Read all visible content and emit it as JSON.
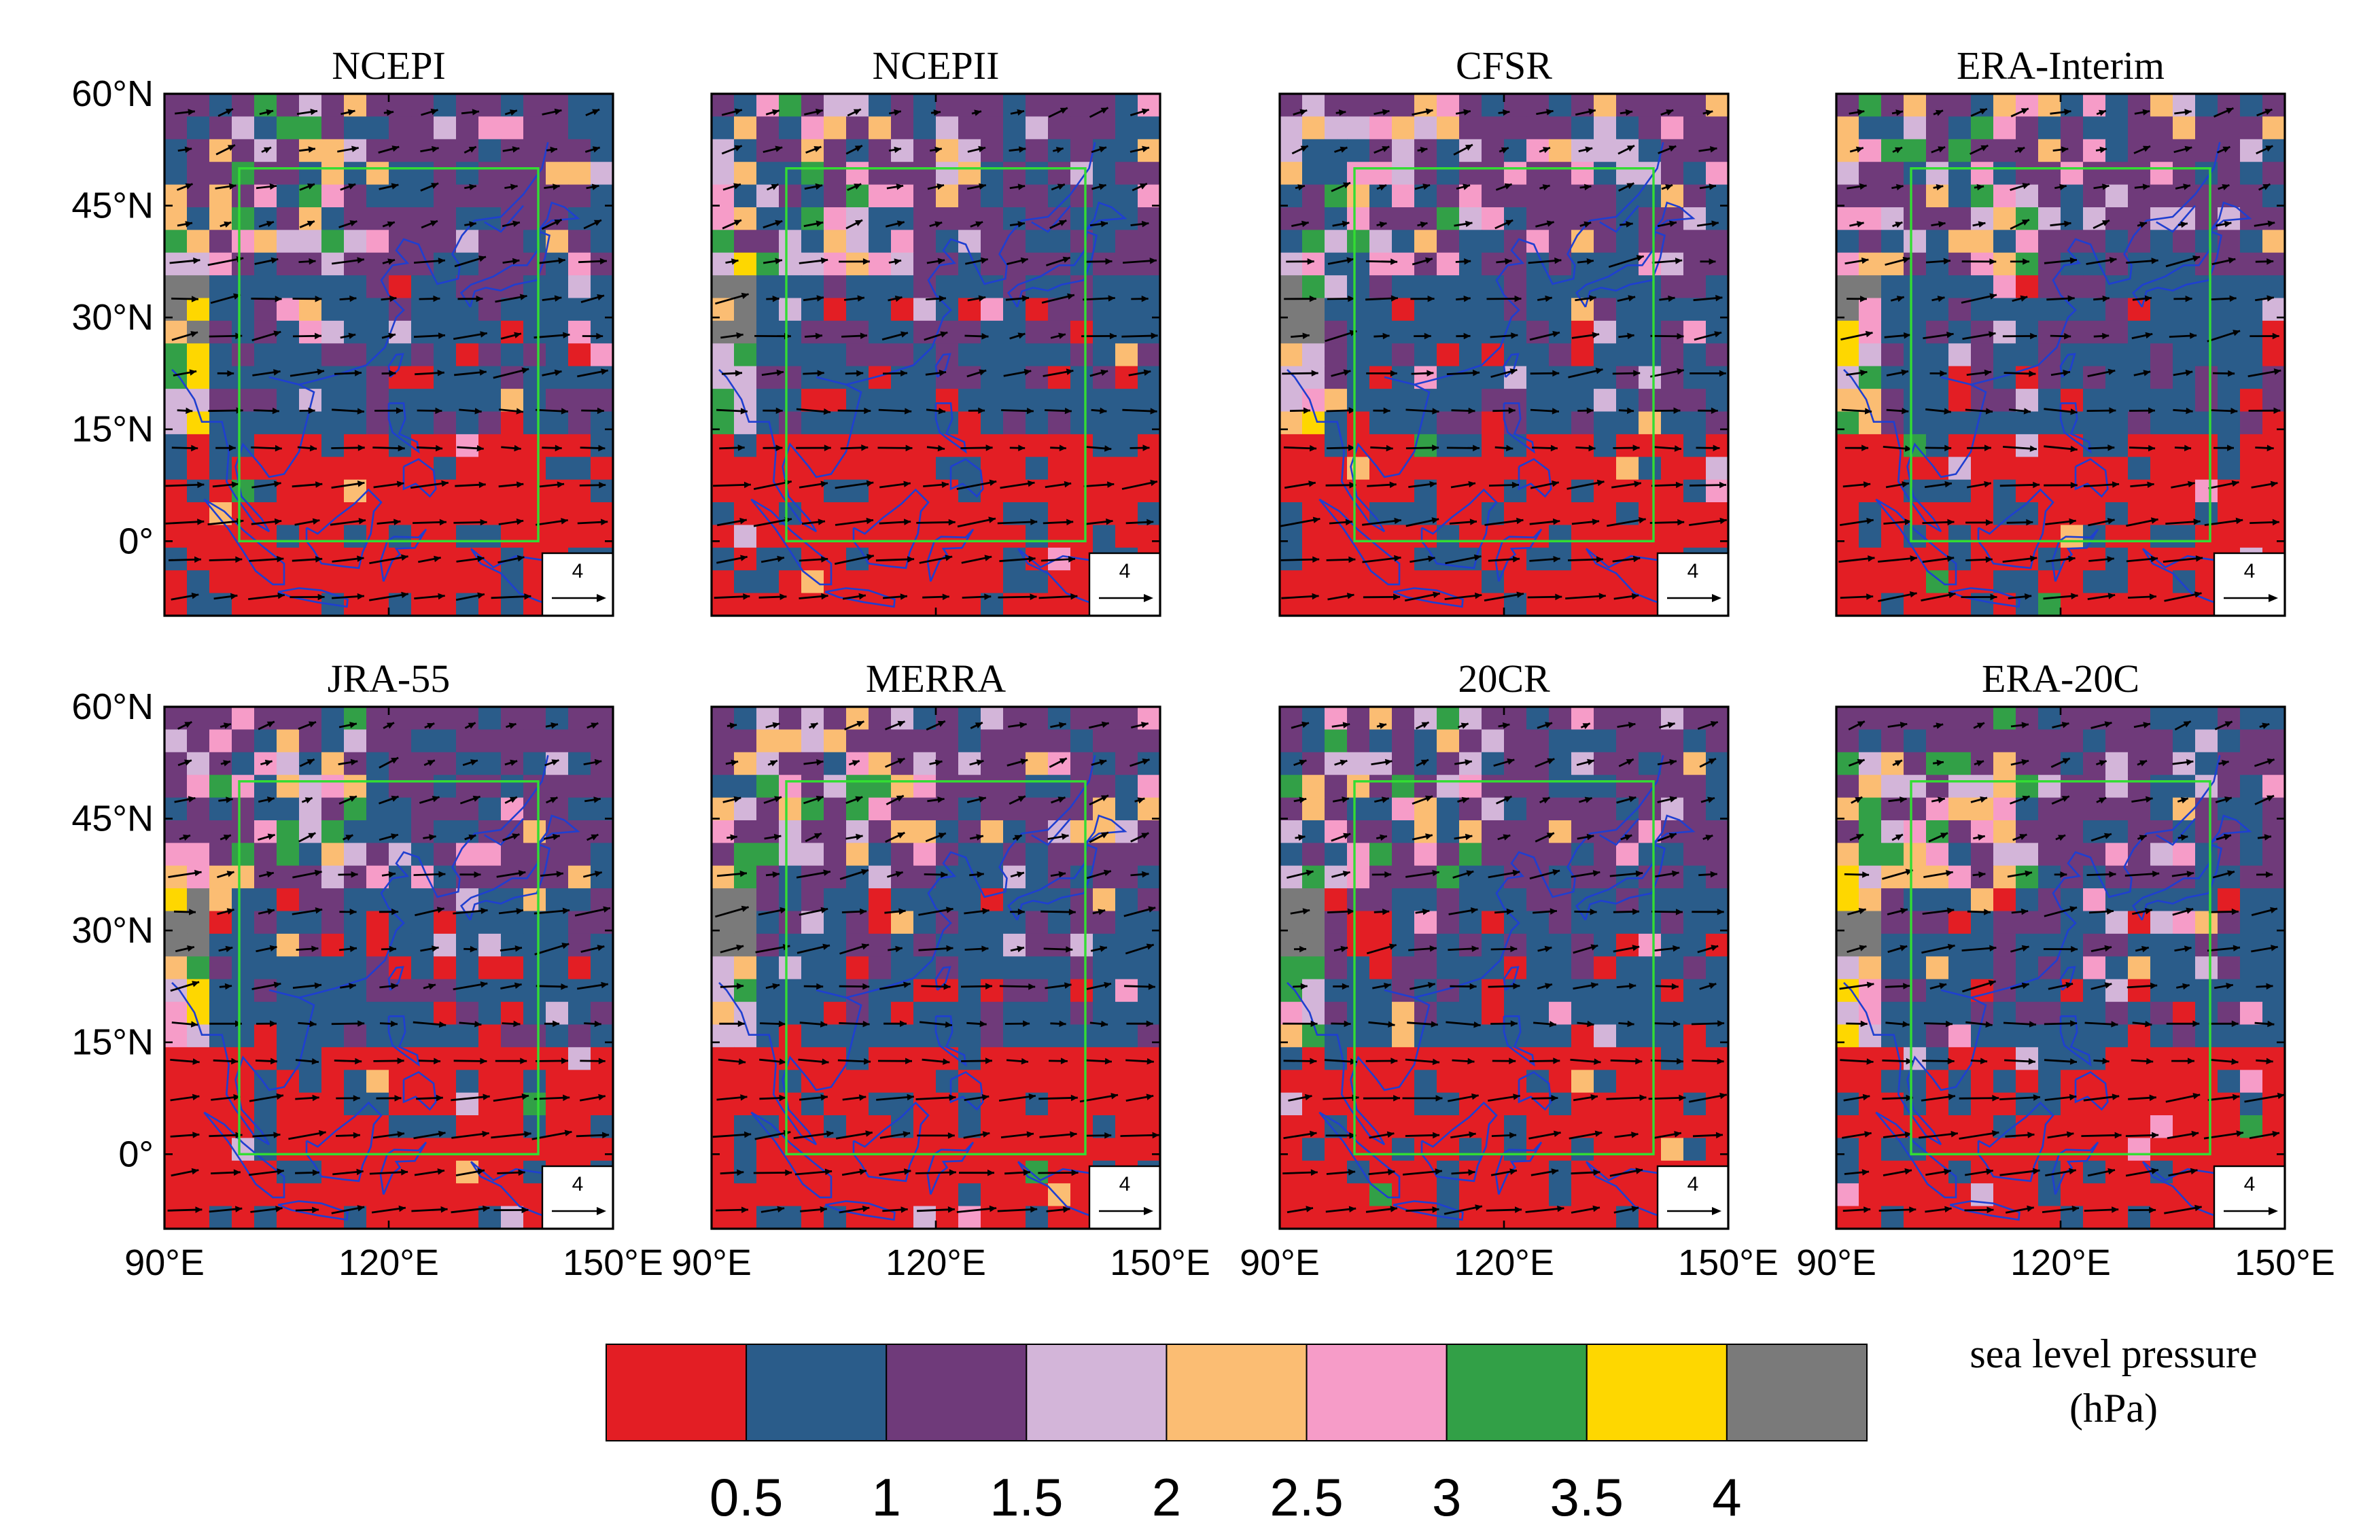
{
  "chart_data": {
    "type": "heatmap",
    "description_of_fields": "Eight map panels of sea level pressure spread with wind vectors",
    "panels": [
      {
        "title": "NCEPI",
        "seed": 11
      },
      {
        "title": "NCEPII",
        "seed": 23
      },
      {
        "title": "CFSR",
        "seed": 37
      },
      {
        "title": "ERA-Interim",
        "seed": 41
      },
      {
        "title": "JRA-55",
        "seed": 53
      },
      {
        "title": "MERRA",
        "seed": 67
      },
      {
        "title": "20CR",
        "seed": 79
      },
      {
        "title": "ERA-20C",
        "seed": 97
      }
    ],
    "x_ticks": [
      "90°E",
      "120°E",
      "150°E"
    ],
    "x_tick_values": [
      90,
      120,
      150
    ],
    "y_ticks": [
      "60°N",
      "45°N",
      "30°N",
      "15°N",
      "0°"
    ],
    "y_tick_values": [
      60,
      45,
      30,
      15,
      0
    ],
    "xlim": [
      90,
      150
    ],
    "ylim": [
      -10,
      60
    ],
    "box_region": {
      "lon": [
        100,
        140
      ],
      "lat": [
        0,
        50
      ]
    },
    "reference_vector": {
      "label": "4",
      "value": 4
    },
    "colorbar": {
      "label_line1": "sea level pressure",
      "label_line2": "(hPa)",
      "colors": [
        "#e31e24",
        "#2a5c8a",
        "#6f3a7a",
        "#d3b5d9",
        "#fbbd73",
        "#f69cc8",
        "#32a047",
        "#fed700",
        "#7a7a7a"
      ],
      "ticks": [
        "0.5",
        "1",
        "1.5",
        "2",
        "2.5",
        "3",
        "3.5",
        "4"
      ],
      "bounds": [
        0.5,
        1,
        1.5,
        2,
        2.5,
        3,
        3.5,
        4
      ]
    }
  }
}
